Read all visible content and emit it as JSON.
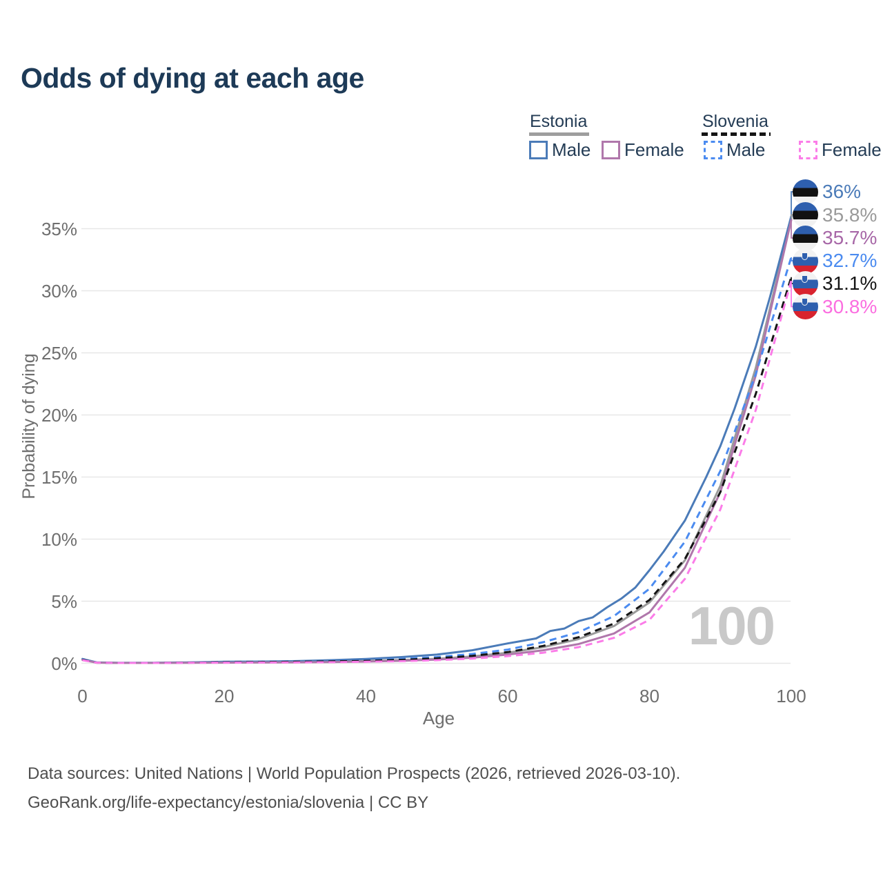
{
  "title": "Odds of dying at each age",
  "colors": {
    "bg": "#ffffff",
    "title": "#1d3a57",
    "axis": "#6e6e6e",
    "grid": "#e7e7e7",
    "watermark": "#c9c9c9",
    "footer": "#4e4e4e",
    "navy": "#243c55"
  },
  "flags": {
    "estonia": [
      "#2e5fae",
      "#121212",
      "#f1f1f1"
    ],
    "slovenia": [
      "#f2f2f2",
      "#2e5fae",
      "#d8232e"
    ]
  },
  "legend": {
    "groups": [
      {
        "name": "Estonia",
        "line_style": "solid",
        "items": [
          {
            "label": "Male",
            "color": "#4b7bb8"
          },
          {
            "label": "Female",
            "color": "#b077ab"
          }
        ]
      },
      {
        "name": "Slovenia",
        "line_style": "dashed",
        "items": [
          {
            "label": "Male",
            "color": "#4b8bf0"
          },
          {
            "label": "Female",
            "color": "#fb7ce8"
          }
        ]
      }
    ]
  },
  "watermark": "100",
  "footer": {
    "line1": "Data sources: United Nations | World Population Prospects (2026, retrieved 2026-03-10).",
    "line2": "GeoRank.org/life-expectancy/estonia/slovenia | CC BY"
  },
  "chart_data": {
    "type": "line",
    "title": "Odds of dying at each age",
    "xlabel": "Age",
    "ylabel": "Probability of dying",
    "xlim": [
      0,
      100
    ],
    "ylim_pct": [
      0,
      37
    ],
    "x_ticks": [
      0,
      20,
      40,
      60,
      80,
      100
    ],
    "y_ticks_pct": [
      0,
      5,
      10,
      15,
      20,
      25,
      30,
      35
    ],
    "grid": "horizontal",
    "legend_position": "top-right",
    "series": [
      {
        "name": "Estonia Male",
        "country": "estonia",
        "sex": "male",
        "color": "#4b7bb8",
        "dash": false,
        "end_label": "36%",
        "end_label_color": "#4b7bb8",
        "x": [
          0,
          2,
          5,
          10,
          15,
          20,
          25,
          30,
          35,
          40,
          45,
          50,
          55,
          60,
          62,
          64,
          66,
          68,
          70,
          72,
          74,
          76,
          78,
          80,
          82,
          85,
          88,
          90,
          92,
          95,
          97,
          100
        ],
        "y_pct": [
          0.35,
          0.07,
          0.04,
          0.04,
          0.07,
          0.12,
          0.14,
          0.17,
          0.25,
          0.35,
          0.5,
          0.7,
          1.05,
          1.6,
          1.8,
          2.0,
          2.6,
          2.8,
          3.4,
          3.7,
          4.5,
          5.2,
          6.1,
          7.5,
          9.0,
          11.5,
          15.0,
          17.5,
          20.5,
          25.5,
          29.5,
          36.0
        ]
      },
      {
        "name": "Estonia",
        "country": "estonia",
        "sex": "total",
        "color": "#9a9a9a",
        "dash": false,
        "end_label": "35.8%",
        "end_label_color": "#9a9a9a",
        "x": [
          0,
          2,
          5,
          10,
          15,
          20,
          25,
          30,
          35,
          40,
          45,
          50,
          55,
          60,
          65,
          70,
          75,
          80,
          85,
          90,
          95,
          100
        ],
        "y_pct": [
          0.3,
          0.06,
          0.03,
          0.03,
          0.05,
          0.08,
          0.09,
          0.11,
          0.14,
          0.19,
          0.26,
          0.36,
          0.55,
          0.85,
          1.3,
          1.95,
          3.0,
          4.9,
          8.3,
          14.3,
          23.8,
          35.8
        ]
      },
      {
        "name": "Estonia Female",
        "country": "estonia",
        "sex": "female",
        "color": "#b077ab",
        "dash": false,
        "end_label": "35.7%",
        "end_label_color": "#a767a7",
        "x": [
          0,
          2,
          5,
          10,
          15,
          20,
          25,
          30,
          35,
          40,
          45,
          50,
          55,
          60,
          65,
          70,
          75,
          80,
          85,
          90,
          95,
          100
        ],
        "y_pct": [
          0.28,
          0.05,
          0.03,
          0.03,
          0.04,
          0.05,
          0.06,
          0.08,
          0.1,
          0.14,
          0.2,
          0.3,
          0.45,
          0.7,
          1.05,
          1.55,
          2.4,
          4.1,
          7.7,
          13.8,
          23.2,
          35.7
        ]
      },
      {
        "name": "Slovenia Male",
        "country": "slovenia",
        "sex": "male",
        "color": "#4b8bf0",
        "dash": true,
        "end_label": "32.7%",
        "end_label_color": "#4b8bf0",
        "x": [
          0,
          2,
          5,
          10,
          15,
          20,
          25,
          30,
          35,
          40,
          45,
          50,
          55,
          60,
          65,
          70,
          75,
          80,
          85,
          90,
          95,
          100
        ],
        "y_pct": [
          0.3,
          0.06,
          0.03,
          0.03,
          0.06,
          0.1,
          0.12,
          0.14,
          0.18,
          0.25,
          0.35,
          0.5,
          0.75,
          1.1,
          1.7,
          2.5,
          3.8,
          6.0,
          9.8,
          15.5,
          23.3,
          32.7
        ]
      },
      {
        "name": "Slovenia",
        "country": "slovenia",
        "sex": "total",
        "color": "#151515",
        "dash": true,
        "end_label": "31.1%",
        "end_label_color": "#151515",
        "x": [
          0,
          2,
          5,
          10,
          15,
          20,
          25,
          30,
          35,
          40,
          45,
          50,
          55,
          60,
          65,
          70,
          75,
          80,
          85,
          90,
          95,
          100
        ],
        "y_pct": [
          0.28,
          0.05,
          0.03,
          0.03,
          0.05,
          0.08,
          0.1,
          0.12,
          0.15,
          0.2,
          0.28,
          0.4,
          0.6,
          0.9,
          1.4,
          2.1,
          3.2,
          5.1,
          8.4,
          13.8,
          21.7,
          31.1
        ]
      },
      {
        "name": "Slovenia Female",
        "country": "slovenia",
        "sex": "female",
        "color": "#fb7ce8",
        "dash": true,
        "end_label": "30.8%",
        "end_label_color": "#fb6ee0",
        "x": [
          0,
          2,
          5,
          10,
          15,
          20,
          25,
          30,
          35,
          40,
          45,
          50,
          55,
          60,
          65,
          70,
          75,
          80,
          85,
          90,
          95,
          100
        ],
        "y_pct": [
          0.25,
          0.05,
          0.03,
          0.03,
          0.04,
          0.05,
          0.06,
          0.07,
          0.09,
          0.12,
          0.17,
          0.25,
          0.38,
          0.58,
          0.85,
          1.3,
          2.05,
          3.5,
          6.8,
          12.4,
          20.4,
          30.8
        ]
      }
    ]
  }
}
